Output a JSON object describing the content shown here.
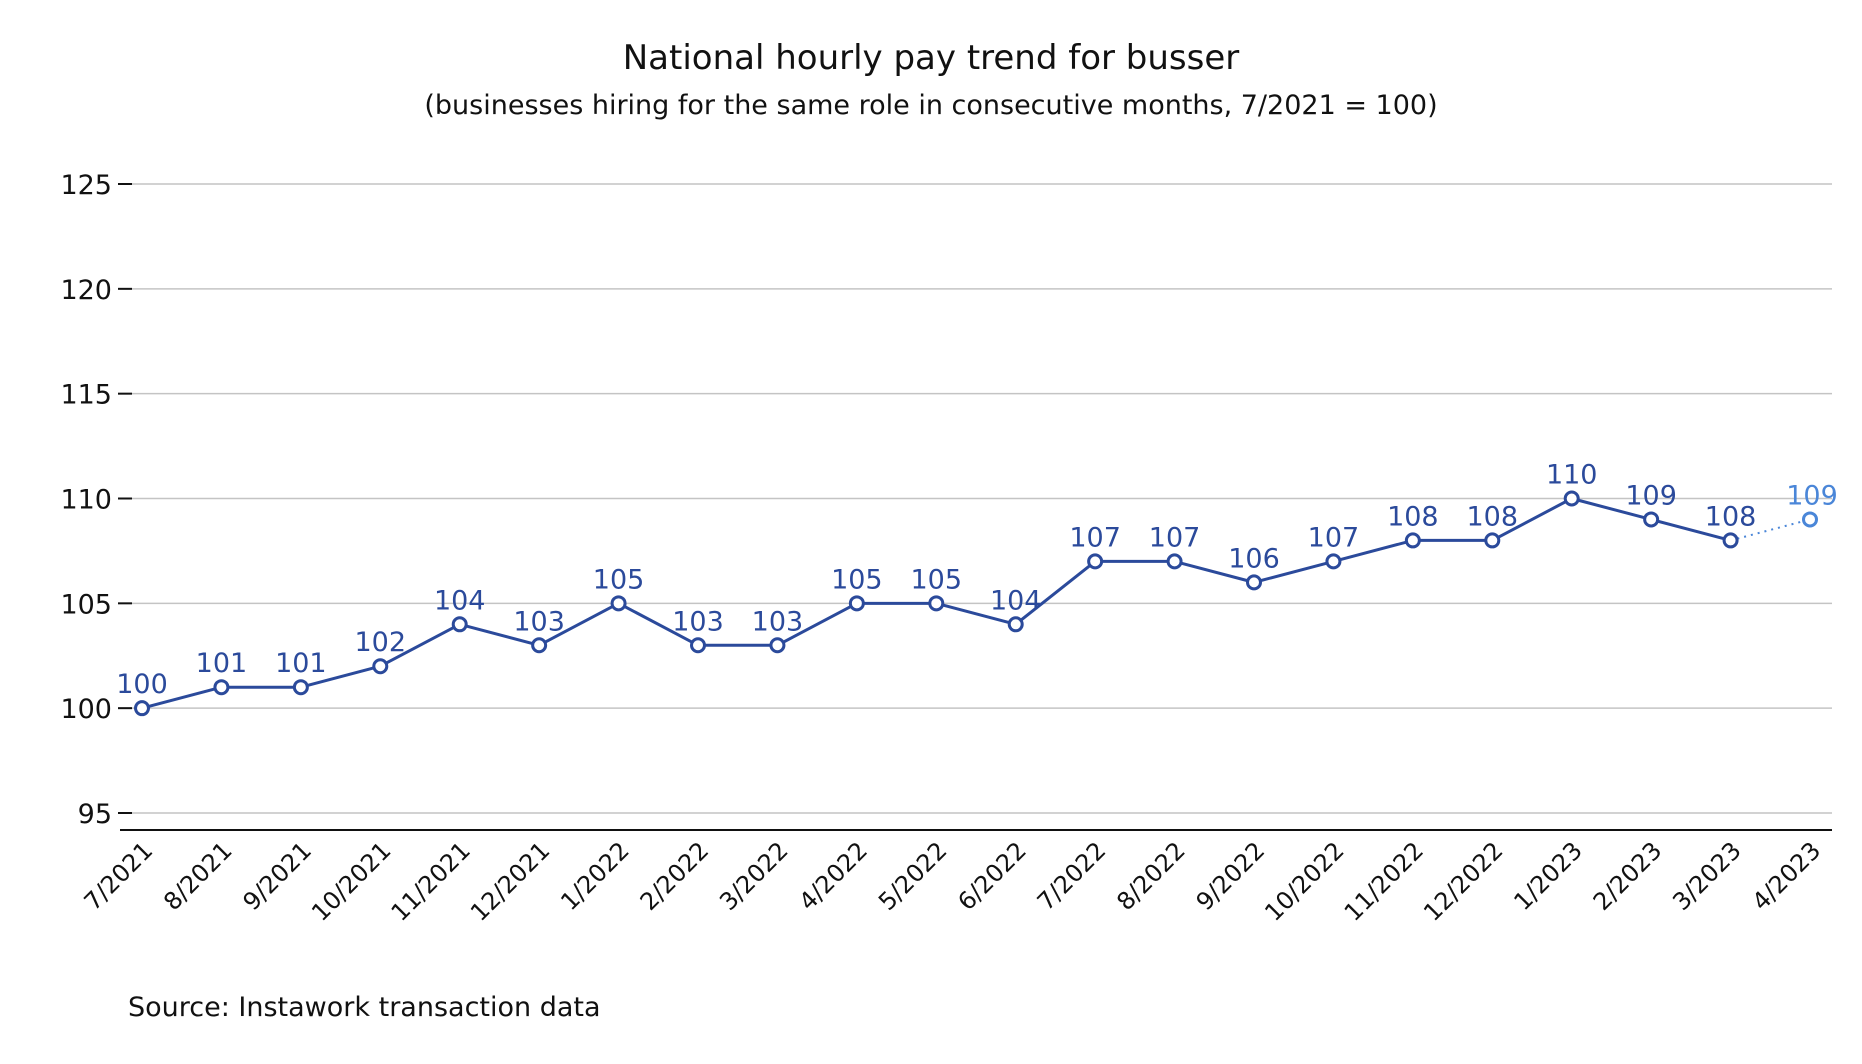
{
  "chart_data": {
    "type": "line",
    "title": "National hourly pay trend for busser",
    "subtitle": "(businesses hiring for the same role in consecutive months, 7/2021 = 100)",
    "source": "Source: Instawork transaction data",
    "xlabel": "",
    "ylabel": "",
    "ylim": [
      95,
      125
    ],
    "yticks": [
      95,
      100,
      105,
      110,
      115,
      120,
      125
    ],
    "grid": true,
    "legend": "none",
    "categories": [
      "7/2021",
      "8/2021",
      "9/2021",
      "10/2021",
      "11/2021",
      "12/2021",
      "1/2022",
      "2/2022",
      "3/2022",
      "4/2022",
      "5/2022",
      "6/2022",
      "7/2022",
      "8/2022",
      "9/2022",
      "10/2022",
      "11/2022",
      "12/2022",
      "1/2023",
      "2/2023",
      "3/2023",
      "4/2023"
    ],
    "series": [
      {
        "values": [
          100,
          101,
          101,
          102,
          104,
          103,
          105,
          103,
          103,
          105,
          105,
          104,
          107,
          107,
          106,
          107,
          108,
          108,
          110,
          109,
          108,
          109
        ],
        "color": "#2b4a9b",
        "projected_last_point": true,
        "projected_color": "#4a86d8"
      }
    ]
  }
}
